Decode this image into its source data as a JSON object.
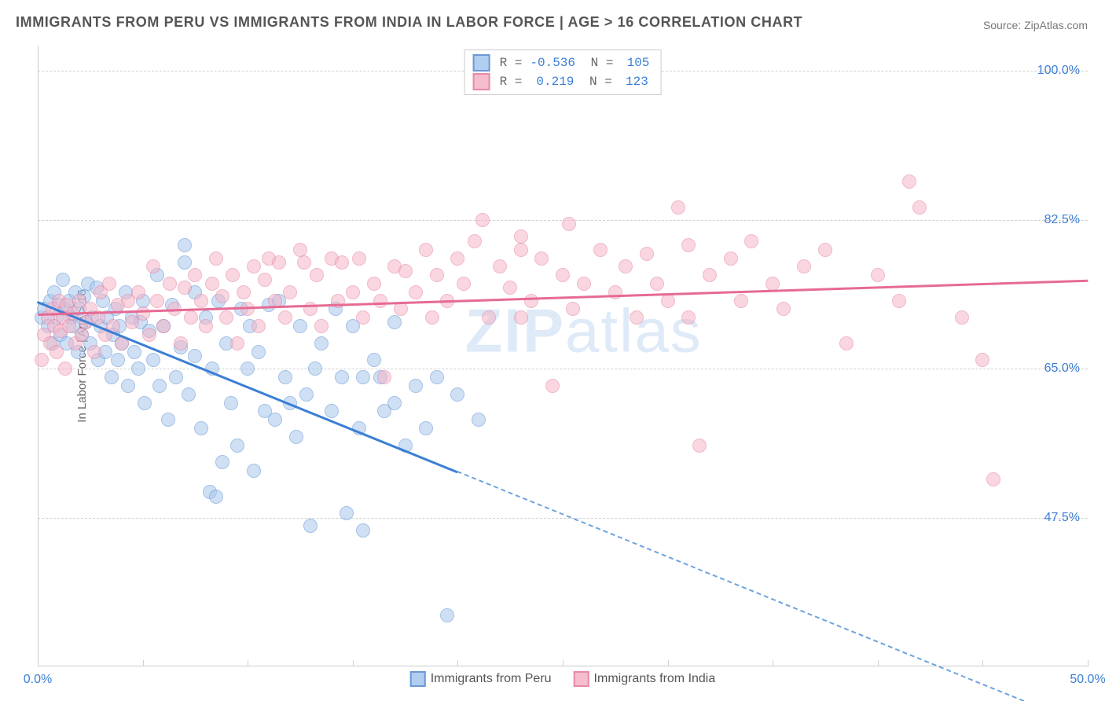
{
  "title": "IMMIGRANTS FROM PERU VS IMMIGRANTS FROM INDIA IN LABOR FORCE | AGE > 16 CORRELATION CHART",
  "source_label": "Source: ZipAtlas.com",
  "y_axis_label": "In Labor Force | Age > 16",
  "watermark": {
    "part1": "ZIP",
    "part2": "atlas"
  },
  "chart": {
    "type": "scatter",
    "xlim": [
      0,
      50
    ],
    "ylim": [
      30,
      103
    ],
    "y_ticks": [
      47.5,
      65.0,
      82.5,
      100.0
    ],
    "y_tick_labels": [
      "47.5%",
      "65.0%",
      "82.5%",
      "100.0%"
    ],
    "x_ticks": [
      0,
      5,
      10,
      15,
      20,
      25,
      30,
      35,
      40,
      45,
      50
    ],
    "x_tick_labels": {
      "0": "0.0%",
      "50": "50.0%"
    },
    "grid_color": "#d0d0d0",
    "background_color": "#ffffff",
    "axis_color": "#cccccc",
    "marker_radius": 9
  },
  "series": [
    {
      "key": "peru",
      "legend_label": "Immigrants from Peru",
      "fill": "#a9c8ee",
      "fill_opacity": 0.55,
      "stroke": "#5b8fd1",
      "line_color": "#3a7fd5",
      "R": "-0.536",
      "N": "105",
      "trend": {
        "x1": 0,
        "y1": 73,
        "x2": 20,
        "y2": 53,
        "extrapolate_to_x": 47
      },
      "points": [
        [
          0.2,
          71
        ],
        [
          0.3,
          72
        ],
        [
          0.5,
          70
        ],
        [
          0.6,
          73
        ],
        [
          0.7,
          68
        ],
        [
          0.8,
          74
        ],
        [
          0.9,
          71
        ],
        [
          1.0,
          72.5
        ],
        [
          1.1,
          69
        ],
        [
          1.2,
          75.5
        ],
        [
          1.3,
          72
        ],
        [
          1.4,
          68
        ],
        [
          1.5,
          73
        ],
        [
          1.6,
          71
        ],
        [
          1.7,
          70
        ],
        [
          1.8,
          74
        ],
        [
          1.9,
          67
        ],
        [
          2.0,
          72
        ],
        [
          2.1,
          69
        ],
        [
          2.2,
          73.5
        ],
        [
          2.3,
          70.5
        ],
        [
          2.4,
          75
        ],
        [
          2.5,
          68
        ],
        [
          2.6,
          71
        ],
        [
          2.8,
          74.5
        ],
        [
          2.9,
          66
        ],
        [
          3.0,
          70
        ],
        [
          3.1,
          73
        ],
        [
          3.2,
          67
        ],
        [
          3.3,
          71
        ],
        [
          3.5,
          64
        ],
        [
          3.6,
          69
        ],
        [
          3.7,
          72
        ],
        [
          3.8,
          66
        ],
        [
          3.9,
          70
        ],
        [
          4.0,
          68
        ],
        [
          4.2,
          74
        ],
        [
          4.3,
          63
        ],
        [
          4.5,
          71
        ],
        [
          4.6,
          67
        ],
        [
          4.8,
          65
        ],
        [
          4.9,
          70.5
        ],
        [
          5.0,
          73
        ],
        [
          5.1,
          61
        ],
        [
          5.3,
          69.5
        ],
        [
          5.5,
          66
        ],
        [
          5.7,
          76
        ],
        [
          5.8,
          63
        ],
        [
          6.0,
          70
        ],
        [
          6.2,
          59
        ],
        [
          6.4,
          72.5
        ],
        [
          6.6,
          64
        ],
        [
          6.8,
          67.5
        ],
        [
          7.0,
          77.5
        ],
        [
          7.0,
          79.5
        ],
        [
          7.2,
          62
        ],
        [
          7.5,
          74
        ],
        [
          7.5,
          66.5
        ],
        [
          7.8,
          58
        ],
        [
          8.0,
          71
        ],
        [
          8.2,
          50.5
        ],
        [
          8.3,
          65
        ],
        [
          8.5,
          50
        ],
        [
          8.6,
          73
        ],
        [
          8.8,
          54
        ],
        [
          9.0,
          68
        ],
        [
          9.2,
          61
        ],
        [
          9.5,
          56
        ],
        [
          9.7,
          72
        ],
        [
          10.0,
          65
        ],
        [
          10.1,
          70
        ],
        [
          10.3,
          53
        ],
        [
          10.5,
          67
        ],
        [
          10.8,
          60
        ],
        [
          11.0,
          72.5
        ],
        [
          11.3,
          59
        ],
        [
          11.5,
          73
        ],
        [
          11.8,
          64
        ],
        [
          12.0,
          61
        ],
        [
          12.3,
          57
        ],
        [
          12.5,
          70
        ],
        [
          12.8,
          62
        ],
        [
          13.0,
          46.5
        ],
        [
          13.2,
          65
        ],
        [
          13.5,
          68
        ],
        [
          14.0,
          60
        ],
        [
          14.2,
          72
        ],
        [
          14.5,
          64
        ],
        [
          14.7,
          48
        ],
        [
          15.0,
          70
        ],
        [
          15.3,
          58
        ],
        [
          15.5,
          64
        ],
        [
          15.5,
          46
        ],
        [
          16.0,
          66
        ],
        [
          16.3,
          64
        ],
        [
          16.5,
          60
        ],
        [
          17.0,
          70.5
        ],
        [
          17.0,
          61
        ],
        [
          17.5,
          56
        ],
        [
          18.0,
          63
        ],
        [
          18.5,
          58
        ],
        [
          19.0,
          64
        ],
        [
          19.5,
          36
        ],
        [
          20.0,
          62
        ],
        [
          21.0,
          59
        ]
      ]
    },
    {
      "key": "india",
      "legend_label": "Immigrants from India",
      "fill": "#f5b6c8",
      "fill_opacity": 0.55,
      "stroke": "#e57f9d",
      "line_color": "#e66a94",
      "R": "0.219",
      "N": "123",
      "trend": {
        "x1": 0,
        "y1": 71.5,
        "x2": 50,
        "y2": 75.5
      },
      "points": [
        [
          0.2,
          66
        ],
        [
          0.3,
          69
        ],
        [
          0.5,
          71
        ],
        [
          0.6,
          68
        ],
        [
          0.7,
          72
        ],
        [
          0.8,
          70
        ],
        [
          0.9,
          67
        ],
        [
          1.0,
          73
        ],
        [
          1.1,
          69.5
        ],
        [
          1.2,
          71
        ],
        [
          1.3,
          65
        ],
        [
          1.4,
          72.5
        ],
        [
          1.5,
          70
        ],
        [
          1.7,
          71.5
        ],
        [
          1.8,
          68
        ],
        [
          2.0,
          73
        ],
        [
          2.1,
          69
        ],
        [
          2.3,
          70.5
        ],
        [
          2.5,
          72
        ],
        [
          2.7,
          67
        ],
        [
          2.9,
          71
        ],
        [
          3.0,
          74
        ],
        [
          3.2,
          69
        ],
        [
          3.4,
          75
        ],
        [
          3.6,
          70
        ],
        [
          3.8,
          72.5
        ],
        [
          4.0,
          68
        ],
        [
          4.3,
          73
        ],
        [
          4.5,
          70.5
        ],
        [
          4.8,
          74
        ],
        [
          5.0,
          71.5
        ],
        [
          5.3,
          69
        ],
        [
          5.5,
          77
        ],
        [
          5.7,
          73
        ],
        [
          6.0,
          70
        ],
        [
          6.3,
          75
        ],
        [
          6.5,
          72
        ],
        [
          6.8,
          68
        ],
        [
          7.0,
          74.5
        ],
        [
          7.3,
          71
        ],
        [
          7.5,
          76
        ],
        [
          7.8,
          73
        ],
        [
          8.0,
          70
        ],
        [
          8.3,
          75
        ],
        [
          8.5,
          78
        ],
        [
          8.8,
          73.5
        ],
        [
          9.0,
          71
        ],
        [
          9.3,
          76
        ],
        [
          9.5,
          68
        ],
        [
          9.8,
          74
        ],
        [
          10.0,
          72
        ],
        [
          10.3,
          77
        ],
        [
          10.5,
          70
        ],
        [
          10.8,
          75.5
        ],
        [
          11.0,
          78
        ],
        [
          11.3,
          73
        ],
        [
          11.5,
          77.5
        ],
        [
          11.8,
          71
        ],
        [
          12.0,
          74
        ],
        [
          12.5,
          79
        ],
        [
          12.7,
          77.5
        ],
        [
          13.0,
          72
        ],
        [
          13.3,
          76
        ],
        [
          13.5,
          70
        ],
        [
          14.0,
          78
        ],
        [
          14.3,
          73
        ],
        [
          14.5,
          77.5
        ],
        [
          15.0,
          74
        ],
        [
          15.3,
          78
        ],
        [
          15.5,
          71
        ],
        [
          16.0,
          75
        ],
        [
          16.3,
          73
        ],
        [
          16.5,
          64
        ],
        [
          17.0,
          77
        ],
        [
          17.3,
          72
        ],
        [
          17.5,
          76.5
        ],
        [
          18.0,
          74
        ],
        [
          18.5,
          79
        ],
        [
          18.8,
          71
        ],
        [
          19.0,
          76
        ],
        [
          19.5,
          73
        ],
        [
          20.0,
          78
        ],
        [
          20.3,
          75
        ],
        [
          20.8,
          80
        ],
        [
          21.2,
          82.5
        ],
        [
          21.5,
          71
        ],
        [
          22.0,
          77
        ],
        [
          22.5,
          74.5
        ],
        [
          23.0,
          79
        ],
        [
          23.0,
          80.5
        ],
        [
          23.0,
          71
        ],
        [
          23.5,
          73
        ],
        [
          24.0,
          78
        ],
        [
          24.5,
          63
        ],
        [
          25.0,
          76
        ],
        [
          25.3,
          82
        ],
        [
          25.5,
          72
        ],
        [
          26.0,
          75
        ],
        [
          26.8,
          79
        ],
        [
          27.5,
          74
        ],
        [
          28.0,
          77
        ],
        [
          28.5,
          71
        ],
        [
          29.0,
          78.5
        ],
        [
          29.5,
          75
        ],
        [
          30.0,
          73
        ],
        [
          30.5,
          84
        ],
        [
          31.0,
          79.5
        ],
        [
          31.0,
          71
        ],
        [
          31.5,
          56
        ],
        [
          32.0,
          76
        ],
        [
          33.0,
          78
        ],
        [
          33.5,
          73
        ],
        [
          34.0,
          80
        ],
        [
          35.0,
          75
        ],
        [
          35.5,
          72
        ],
        [
          36.5,
          77
        ],
        [
          37.5,
          79
        ],
        [
          38.5,
          68
        ],
        [
          40.0,
          76
        ],
        [
          41.0,
          73
        ],
        [
          41.5,
          87
        ],
        [
          42.0,
          84
        ],
        [
          44.0,
          71
        ],
        [
          45.0,
          66
        ],
        [
          45.5,
          52
        ]
      ]
    }
  ]
}
